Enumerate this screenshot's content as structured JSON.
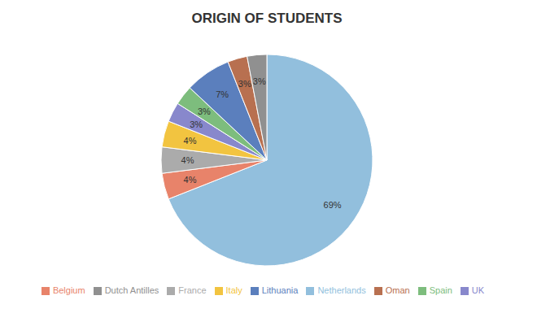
{
  "chart_data": {
    "type": "pie",
    "title": "ORIGIN OF STUDENTS",
    "categories": [
      "Netherlands",
      "Belgium",
      "France",
      "Italy",
      "UK",
      "Spain",
      "Lithuania",
      "Oman",
      "Dutch Antilles"
    ],
    "values": [
      69,
      4,
      4,
      4,
      3,
      3,
      7,
      3,
      3
    ],
    "value_labels": [
      "69%",
      "4%",
      "4%",
      "4%",
      "3%",
      "3%",
      "7%",
      "3%",
      "3%"
    ],
    "colors": [
      "#92BFDD",
      "#E8836A",
      "#ABABAB",
      "#F2C440",
      "#8888CC",
      "#7DBD7D",
      "#5B7FBD",
      "#B87050",
      "#909090"
    ],
    "data_labels": true,
    "legend": "bottom"
  }
}
